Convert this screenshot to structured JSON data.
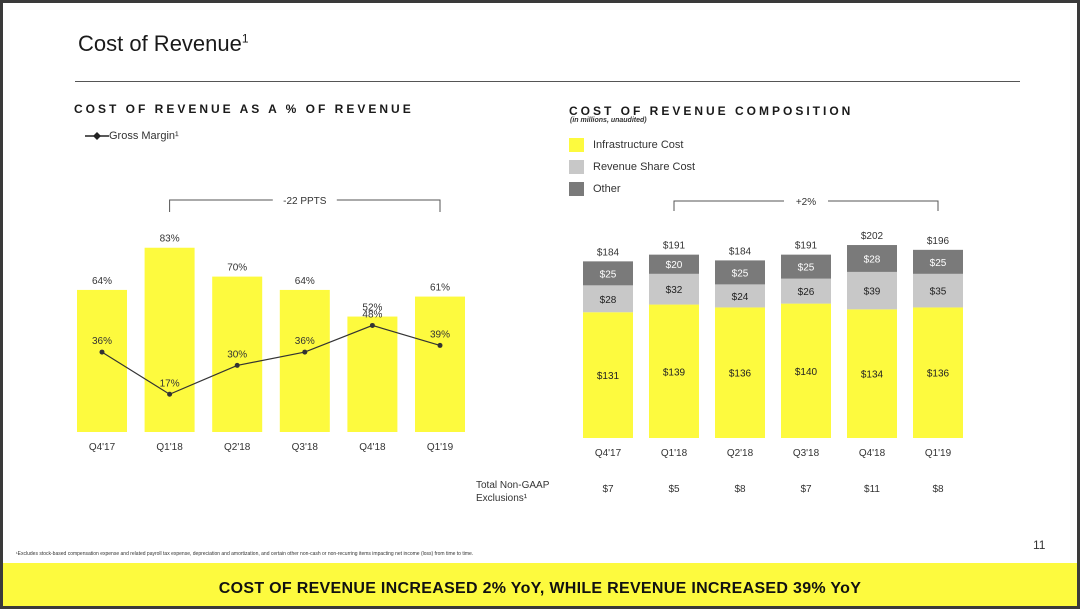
{
  "page": {
    "title": "Cost of Revenue",
    "title_sup": "1",
    "page_number": "11",
    "footnote": "¹Excludes stock-based compensation expense and related payroll tax expense, depreciation and amortization, and certain other non-cash or non-recurring items impacting net income (loss) from time to time.",
    "banner": "COST OF REVENUE INCREASED 2% YoY, WHILE REVENUE INCREASED 39% YoY"
  },
  "chart_data": [
    {
      "type": "bar",
      "title": "COST OF REVENUE AS A % OF REVENUE",
      "categories": [
        "Q4'17",
        "Q1'18",
        "Q2'18",
        "Q3'18",
        "Q4'18",
        "Q1'19"
      ],
      "series": [
        {
          "name": "Cost of Revenue as % of Revenue",
          "values": [
            64,
            83,
            70,
            64,
            52,
            61
          ],
          "labels": [
            "64%",
            "83%",
            "70%",
            "64%",
            "52%",
            "61%"
          ],
          "color": "#fdfa3e"
        },
        {
          "name": "Gross Margin¹",
          "type": "line",
          "values": [
            36,
            17,
            30,
            36,
            48,
            39
          ],
          "labels": [
            "36%",
            "17%",
            "30%",
            "36%",
            "48%",
            "39%"
          ],
          "color": "#333333"
        }
      ],
      "legend": {
        "label": "Gross Margin¹"
      },
      "annotation": {
        "text": "-22 PPTS",
        "from": "Q1'18",
        "to": "Q1'19"
      },
      "ylim": [
        0,
        100
      ]
    },
    {
      "type": "stacked_bar",
      "title": "COST OF REVENUE COMPOSITION",
      "subtitle": "(in millions, unaudited)",
      "categories": [
        "Q4'17",
        "Q1'18",
        "Q2'18",
        "Q3'18",
        "Q4'18",
        "Q1'19"
      ],
      "series": [
        {
          "name": "Infrastructure Cost",
          "values": [
            131,
            139,
            136,
            140,
            134,
            136
          ],
          "labels": [
            "$131",
            "$139",
            "$136",
            "$140",
            "$134",
            "$136"
          ],
          "color": "#fdfa3e"
        },
        {
          "name": "Revenue Share Cost",
          "values": [
            28,
            32,
            24,
            26,
            39,
            35
          ],
          "labels": [
            "$28",
            "$32",
            "$24",
            "$26",
            "$39",
            "$35"
          ],
          "color": "#c8c8c8"
        },
        {
          "name": "Other",
          "values": [
            25,
            20,
            25,
            25,
            28,
            25
          ],
          "labels": [
            "$25",
            "$20",
            "$25",
            "$25",
            "$28",
            "$25"
          ],
          "color": "#7a7a7a"
        }
      ],
      "totals": [
        "$184",
        "$191",
        "$184",
        "$191",
        "$202",
        "$196"
      ],
      "annotation": {
        "text": "+2%",
        "from": "Q1'18",
        "to": "Q1'19"
      },
      "exclusions": {
        "label": "Total Non-GAAP Exclusions¹",
        "values": [
          "$7",
          "$5",
          "$8",
          "$7",
          "$11",
          "$8"
        ]
      },
      "ylim": [
        0,
        210
      ]
    }
  ]
}
